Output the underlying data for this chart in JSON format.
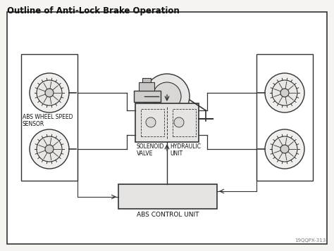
{
  "title": "Outline of Anti-Lock Brake Operation",
  "bg_color": "#f5f4f0",
  "border_color": "#444444",
  "inner_bg": "#ffffff",
  "label_abs_wheel": "ABS WHEEL SPEED\nSENSOR",
  "label_solenoid": "SOLENOID\nVALVE",
  "label_hydraulic": "HYDRAULIC\nUNIT",
  "label_abs_control": "ABS CONTROL UNIT",
  "watermark": "19QQPX-313",
  "line_color": "#333333",
  "box_fill": "#e0dedd",
  "wheel_outer_fill": "#f0efee",
  "wheel_inner_fill": "#e8e7e6",
  "wheel_hub_fill": "#d0cfce"
}
